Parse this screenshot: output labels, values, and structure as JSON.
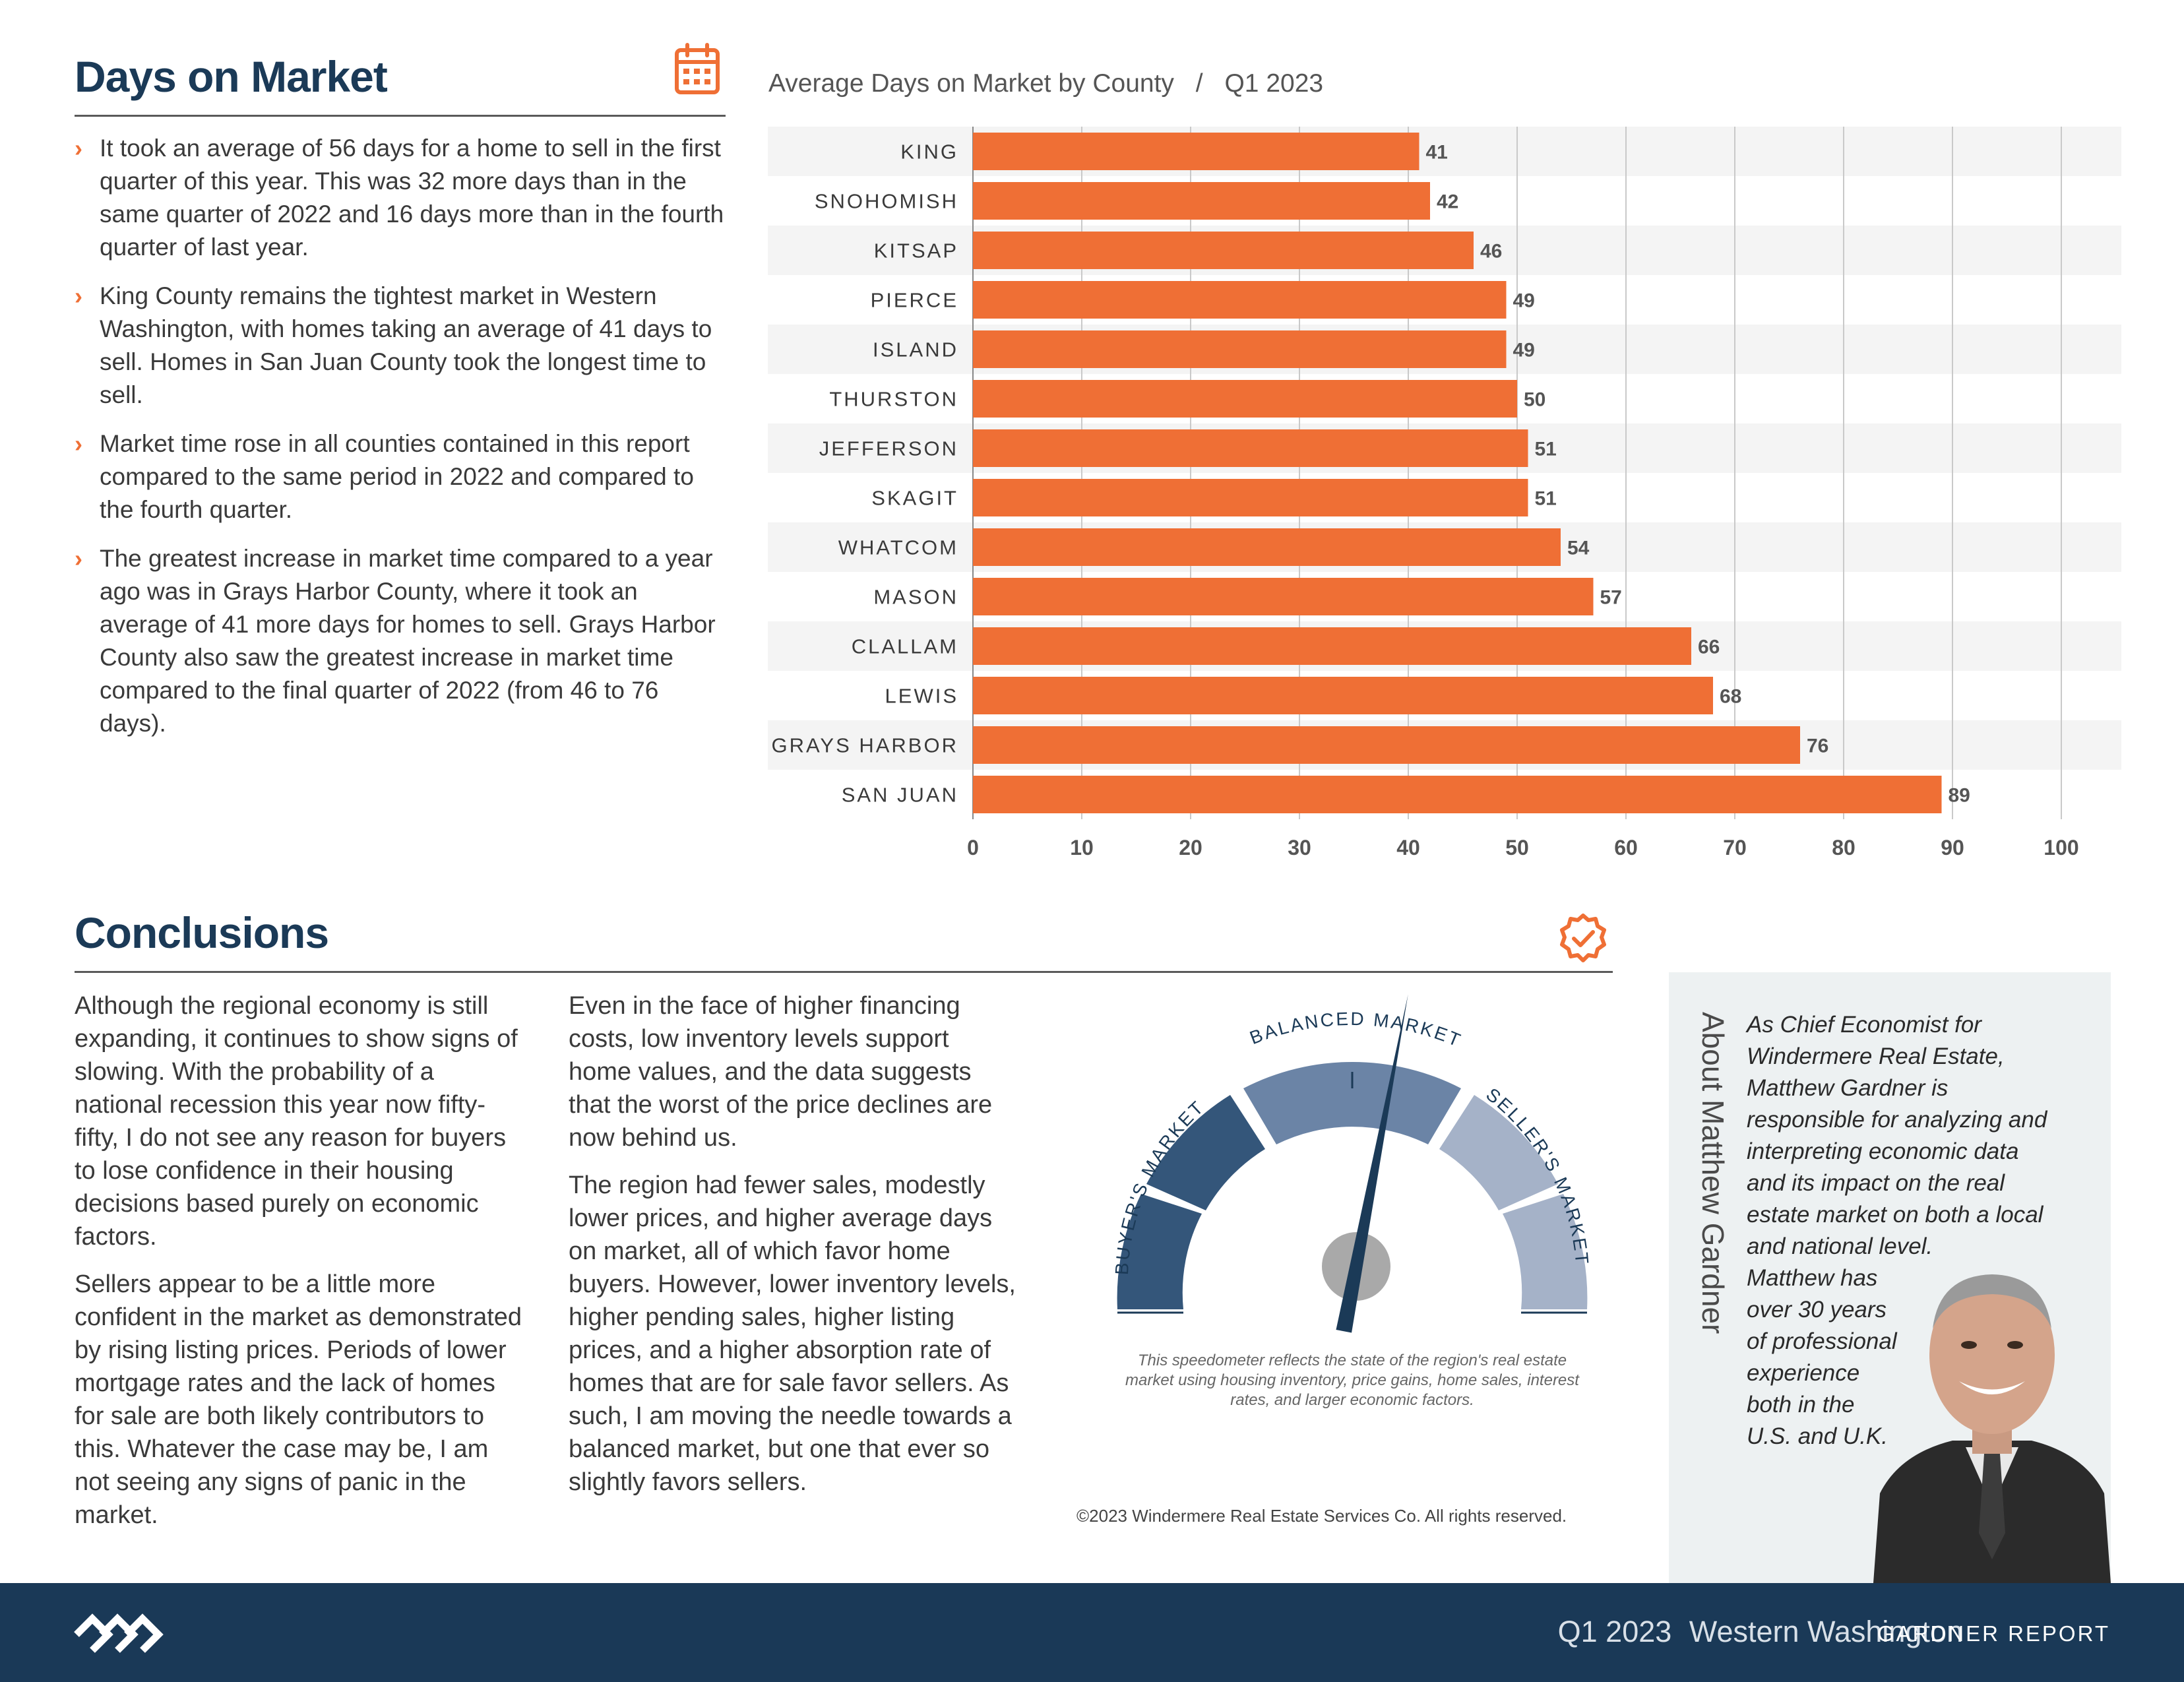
{
  "days_section": {
    "title": "Days on Market",
    "icon": "calendar-icon",
    "bullets": [
      "It took an average of 56 days for a home to sell in the first quarter of this year. This was 32 more days than in the same quarter of 2022 and 16 days more than in the fourth quarter of last year.",
      "King County remains the tightest market in Western Washington, with homes taking an average of 41 days to sell. Homes in San Juan County took the longest time to sell.",
      "Market time rose in all counties contained in this report compared to the same period in 2022 and compared to the fourth quarter.",
      "The greatest increase in market time compared to a year ago was in Grays Harbor County, where it took an average of 41 more days for homes to sell. Grays Harbor County also saw the greatest increase in market time compared to the final quarter of 2022 (from 46 to 76 days)."
    ]
  },
  "chart_data": {
    "type": "bar",
    "orientation": "horizontal",
    "title": "Average Days on Market by County",
    "title_separator": "/",
    "subtitle": "Q1 2023",
    "categories": [
      "KING",
      "SNOHOMISH",
      "KITSAP",
      "PIERCE",
      "ISLAND",
      "THURSTON",
      "JEFFERSON",
      "SKAGIT",
      "WHATCOM",
      "MASON",
      "CLALLAM",
      "LEWIS",
      "GRAYS HARBOR",
      "SAN JUAN"
    ],
    "values": [
      41,
      42,
      46,
      49,
      49,
      50,
      51,
      51,
      54,
      57,
      66,
      68,
      76,
      89
    ],
    "xlim": [
      0,
      100
    ],
    "xticks": [
      0,
      10,
      20,
      30,
      40,
      50,
      60,
      70,
      80,
      90,
      100
    ],
    "grid": true,
    "bar_color": "#ef6f35",
    "xlabel": "",
    "ylabel": ""
  },
  "conclusions": {
    "title": "Conclusions",
    "icon": "badge-check-icon",
    "col1": [
      "Although the regional economy is still expanding, it continues to show signs of slowing. With the probability of a national recession this year now fifty-fifty, I do not see any reason for buyers to lose confidence in their housing decisions based purely on economic factors.",
      "Sellers appear to be a little more confident in the market as demonstrated by rising listing prices. Periods of lower mortgage rates and the lack of homes for sale are both likely contributors to this. Whatever the case may be, I am not seeing any signs of panic in the market."
    ],
    "col2": [
      "Even in the face of higher financing costs, low inventory levels support home values, and the data suggests that the worst of the price declines are now behind us.",
      "The region had fewer sales, modestly lower prices, and higher average days on market, all of which favor home buyers. However, lower inventory levels, higher pending sales, higher listing prices, and a higher absorption rate of homes that are for sale favor sellers. As such, I am moving the needle towards a balanced market, but one that ever so slightly favors sellers."
    ]
  },
  "gauge": {
    "label_buyers": "BUYER'S MARKET",
    "label_balanced": "BALANCED MARKET",
    "label_sellers": "SELLER'S MARKET",
    "needle_value": 0.56,
    "caption": "This speedometer reflects the state of the region's real estate market using housing inventory, price gains, home sales, interest rates, and larger economic factors."
  },
  "copyright": "©2023 Windermere Real Estate Services Co. All rights reserved.",
  "about": {
    "heading": "About Matthew Gardner",
    "lines": [
      "As Chief Economist for",
      "Windermere Real Estate,",
      "Matthew Gardner is",
      "responsible for analyzing and",
      "interpreting economic data",
      "and its impact on the real",
      "estate market on both a local",
      "and national level.",
      "Matthew has",
      "over 30 years",
      "of professional",
      "experience",
      "both in the",
      "U.S. and U.K."
    ]
  },
  "footer": {
    "logo": "windermere-logo-icon",
    "period": "Q1 2023",
    "region": "Western Washington",
    "report": "GARDNER REPORT"
  },
  "colors": {
    "navy": "#1b3a57",
    "orange": "#ef6f35",
    "footer_bg": "#1a3957",
    "gauge_dark": "#34567a",
    "gauge_mid": "#6b84a6",
    "gauge_light": "#a5b2c8"
  }
}
